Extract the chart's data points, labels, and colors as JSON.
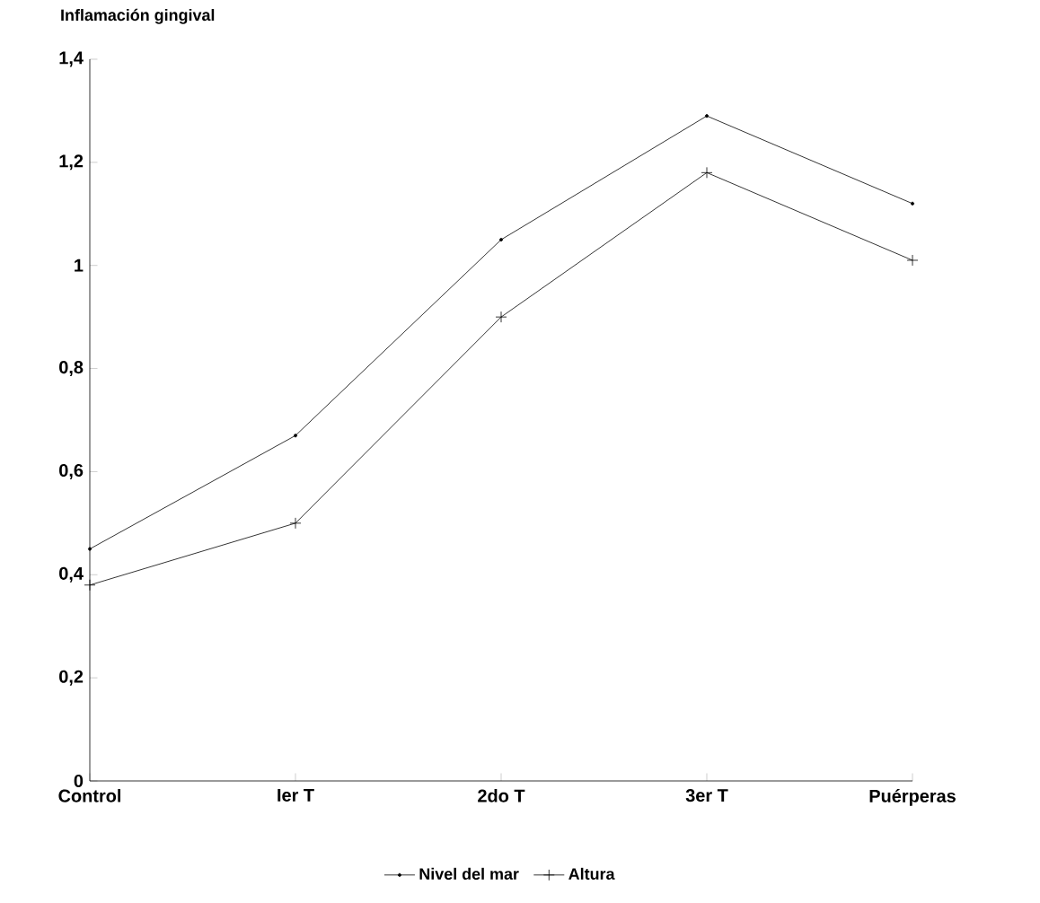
{
  "chart_data": {
    "type": "line",
    "ylabel": "Inflamación gingival",
    "categories": [
      "Control",
      "Ier T",
      "2do T",
      "3er T",
      "Puérperas"
    ],
    "series": [
      {
        "name": "Nivel del mar",
        "color": "#000000",
        "marker": "circle",
        "values": [
          0.45,
          0.67,
          1.05,
          1.29,
          1.12
        ]
      },
      {
        "name": "Altura",
        "color": "#000000",
        "marker": "cross",
        "values": [
          0.38,
          0.5,
          0.9,
          1.18,
          1.01
        ]
      }
    ],
    "ylim": [
      0,
      1.4
    ],
    "yticks": [
      {
        "value": 0,
        "label": "0"
      },
      {
        "value": 0.2,
        "label": "0,2"
      },
      {
        "value": 0.4,
        "label": "0,4"
      },
      {
        "value": 0.6,
        "label": "0,6"
      },
      {
        "value": 0.8,
        "label": "0,8"
      },
      {
        "value": 1,
        "label": "1"
      },
      {
        "value": 1.2,
        "label": "1,2"
      },
      {
        "value": 1.4,
        "label": "1,4"
      }
    ],
    "legend": "bottom",
    "grid": false,
    "line_style": "solid"
  }
}
